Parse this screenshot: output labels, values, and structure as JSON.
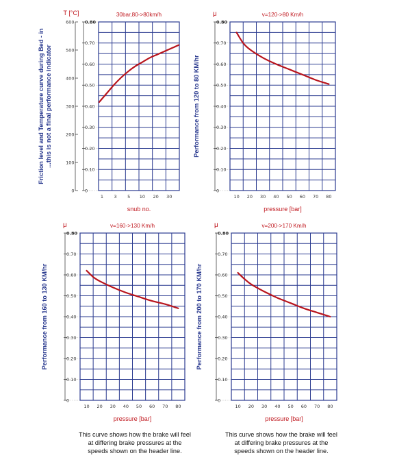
{
  "chart_data": [
    {
      "type": "line",
      "panel_title": "30bar,80->80km/h",
      "y2_symbol": "T [°C]",
      "y_symbol": "",
      "xlabel": "snub no.",
      "ylabel": "Friction level and Temperature curve during Bed - in ...this is not a final performance indicator",
      "x_tick_labels": [
        "1",
        "3",
        "5",
        "10",
        "20",
        "30"
      ],
      "y_ticks": [
        "0",
        "0.10",
        "0.20",
        "0.30",
        "0.40",
        "0.50",
        "0.60",
        "0.70",
        "0.80"
      ],
      "y2_ticks": [
        "0",
        "100",
        "200",
        "300",
        "400",
        "500",
        "600"
      ],
      "ylim": [
        0,
        0.8
      ],
      "y2lim": [
        0,
        600
      ],
      "x_categories": [
        1,
        3,
        5,
        10,
        20,
        30
      ],
      "series": [
        {
          "x_index": [
            0,
            0.5,
            1,
            1.5,
            2,
            2.5,
            3,
            3.5,
            4,
            4.5,
            5,
            5.5
          ],
          "values": [
            0.42,
            0.46,
            0.5,
            0.535,
            0.565,
            0.59,
            0.61,
            0.63,
            0.645,
            0.66,
            0.675,
            0.69
          ]
        }
      ],
      "grid": true
    },
    {
      "type": "line",
      "panel_title": "v=120->80 Km/h",
      "y_symbol": "μ",
      "xlabel": "pressure [bar]",
      "ylabel": "Performance from 120 to 80 KM/hr",
      "x_tick_labels": [
        "10",
        "20",
        "30",
        "40",
        "50",
        "60",
        "70",
        "80"
      ],
      "y_ticks": [
        "0",
        "0.10",
        "0.20",
        "0.30",
        "0.40",
        "0.50",
        "0.60",
        "0.70",
        "0.80"
      ],
      "ylim": [
        0,
        0.8
      ],
      "xlim": [
        5,
        85
      ],
      "series": [
        {
          "x": [
            10,
            15,
            20,
            30,
            40,
            50,
            60,
            70,
            80
          ],
          "values": [
            0.75,
            0.7,
            0.67,
            0.63,
            0.6,
            0.575,
            0.55,
            0.525,
            0.505
          ]
        }
      ],
      "grid": true
    },
    {
      "type": "line",
      "panel_title": "v=160->130 Km/h",
      "y_symbol": "μ",
      "xlabel": "pressure [bar]",
      "ylabel": "Performance from 160 to 130 KM/hr",
      "x_tick_labels": [
        "10",
        "20",
        "30",
        "40",
        "50",
        "60",
        "70",
        "80"
      ],
      "y_ticks": [
        "0",
        "0.10",
        "0.20",
        "0.30",
        "0.40",
        "0.50",
        "0.60",
        "0.70",
        "0.80"
      ],
      "ylim": [
        0,
        0.8
      ],
      "xlim": [
        5,
        85
      ],
      "series": [
        {
          "x": [
            10,
            15,
            20,
            30,
            40,
            50,
            60,
            70,
            80
          ],
          "values": [
            0.62,
            0.59,
            0.57,
            0.54,
            0.515,
            0.495,
            0.475,
            0.46,
            0.44
          ]
        }
      ],
      "grid": true
    },
    {
      "type": "line",
      "panel_title": "v=200->170 Km/h",
      "y_symbol": "μ",
      "xlabel": "pressure [bar]",
      "ylabel": "Performance from 200 to 170 KM/hr",
      "x_tick_labels": [
        "10",
        "20",
        "30",
        "40",
        "50",
        "60",
        "70",
        "80"
      ],
      "y_ticks": [
        "0",
        "0.10",
        "0.20",
        "0.30",
        "0.40",
        "0.50",
        "0.60",
        "0.70",
        "0.80"
      ],
      "ylim": [
        0,
        0.8
      ],
      "xlim": [
        5,
        85
      ],
      "series": [
        {
          "x": [
            10,
            15,
            20,
            30,
            40,
            50,
            60,
            70,
            80
          ],
          "values": [
            0.61,
            0.58,
            0.555,
            0.52,
            0.49,
            0.465,
            0.44,
            0.42,
            0.4
          ]
        }
      ],
      "grid": true
    }
  ],
  "captions": [
    "This curve shows how the brake will feel at differing brake pressures at the speeds shown on the header line.",
    "This curve shows how the brake will feel at differing brake pressures at the speeds shown on the header line."
  ],
  "caption_lines": [
    [
      "This curve shows how the brake will feel",
      "at differing brake pressures at the",
      "speeds shown on the header line."
    ],
    [
      "This curve shows how the brake will feel",
      "at differing brake pressures at the",
      "speeds shown on the header line."
    ]
  ],
  "colors": {
    "grid": "#2a3a8f",
    "curve": "#b8141c",
    "title": "#c0181f",
    "ylabel": "#2a3a8f"
  }
}
